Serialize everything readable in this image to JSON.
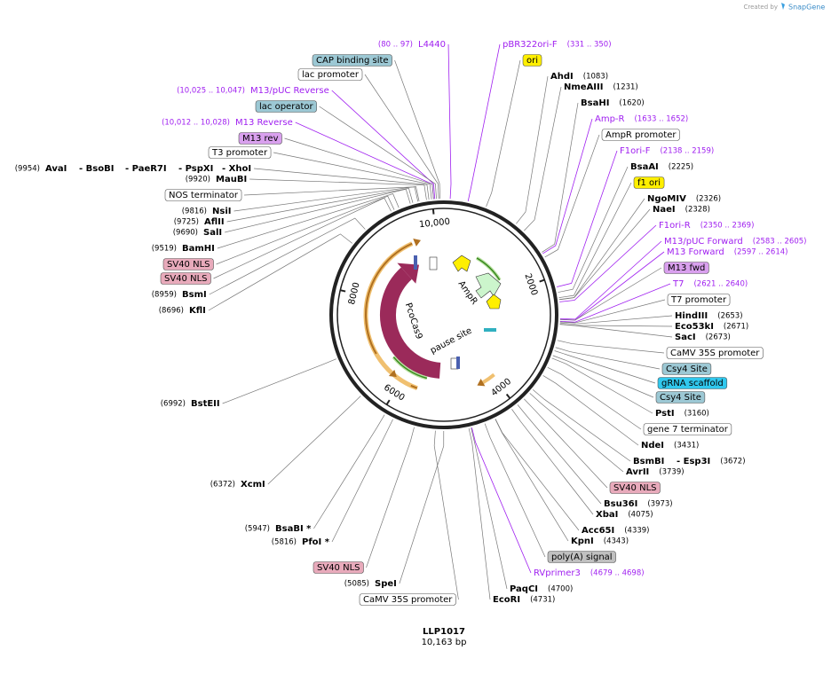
{
  "header": {
    "created_by": "Created by",
    "brand": "SnapGene"
  },
  "map": {
    "name": "LLP1017",
    "length": "10,163 bp",
    "ticks": [
      "10,000",
      "2000",
      "4000",
      "6000",
      "8000"
    ],
    "features": [
      "AmpR",
      "PcoCas9",
      "pause site"
    ]
  },
  "labels": [
    {
      "name": "L4440",
      "pos": "(80 .. 97)"
    },
    {
      "name": "CAP binding site"
    },
    {
      "name": "lac promoter"
    },
    {
      "name": "M13/pUC Reverse",
      "pos": "(10,025 .. 10,047)"
    },
    {
      "name": "lac operator"
    },
    {
      "name": "M13 Reverse",
      "pos": "(10,012 .. 10,028)"
    },
    {
      "name": "M13 rev"
    },
    {
      "name": "T3 promoter"
    },
    {
      "name": "AvaI",
      "pos": "(9954)"
    },
    {
      "name": "- BsoBI"
    },
    {
      "name": "- PaeR7I"
    },
    {
      "name": "- PspXI"
    },
    {
      "name": "- XhoI"
    },
    {
      "name": "MauBI",
      "pos": "(9920)"
    },
    {
      "name": "NOS terminator"
    },
    {
      "name": "NsiI",
      "pos": "(9816)"
    },
    {
      "name": "AflII",
      "pos": "(9725)"
    },
    {
      "name": "SalI",
      "pos": "(9690)"
    },
    {
      "name": "BamHI",
      "pos": "(9519)"
    },
    {
      "name": "SV40 NLS"
    },
    {
      "name": "SV40 NLS"
    },
    {
      "name": "BsmI",
      "pos": "(8959)"
    },
    {
      "name": "KflI",
      "pos": "(8696)"
    },
    {
      "name": "BstEII",
      "pos": "(6992)"
    },
    {
      "name": "XcmI",
      "pos": "(6372)"
    },
    {
      "name": "BsaBI *",
      "pos": "(5947)"
    },
    {
      "name": "PfoI *",
      "pos": "(5816)"
    },
    {
      "name": "SV40 NLS"
    },
    {
      "name": "SpeI",
      "pos": "(5085)"
    },
    {
      "name": "CaMV 35S promoter"
    },
    {
      "name": "pBR322ori-F",
      "pos": "(331 .. 350)"
    },
    {
      "name": "ori"
    },
    {
      "name": "AhdI",
      "pos": "(1083)"
    },
    {
      "name": "NmeAIII",
      "pos": "(1231)"
    },
    {
      "name": "BsaHI",
      "pos": "(1620)"
    },
    {
      "name": "Amp-R",
      "pos": "(1633 .. 1652)"
    },
    {
      "name": "AmpR promoter"
    },
    {
      "name": "F1ori-F",
      "pos": "(2138 .. 2159)"
    },
    {
      "name": "BsaAI",
      "pos": "(2225)"
    },
    {
      "name": "f1 ori"
    },
    {
      "name": "NgoMIV",
      "pos": "(2326)"
    },
    {
      "name": "NaeI",
      "pos": "(2328)"
    },
    {
      "name": "F1ori-R",
      "pos": "(2350 .. 2369)"
    },
    {
      "name": "M13/pUC Forward",
      "pos": "(2583 .. 2605)"
    },
    {
      "name": "M13 Forward",
      "pos": "(2597 .. 2614)"
    },
    {
      "name": "M13 fwd"
    },
    {
      "name": "T7",
      "pos": "(2621 .. 2640)"
    },
    {
      "name": "T7 promoter"
    },
    {
      "name": "HindIII",
      "pos": "(2653)"
    },
    {
      "name": "Eco53kI",
      "pos": "(2671)"
    },
    {
      "name": "SacI",
      "pos": "(2673)"
    },
    {
      "name": "CaMV 35S promoter"
    },
    {
      "name": "Csy4 Site"
    },
    {
      "name": "gRNA scaffold"
    },
    {
      "name": "Csy4 Site"
    },
    {
      "name": "PstI",
      "pos": "(3160)"
    },
    {
      "name": "gene 7 terminator"
    },
    {
      "name": "NdeI",
      "pos": "(3431)"
    },
    {
      "name": "BsmBI"
    },
    {
      "name": "- Esp3I",
      "pos": "(3672)"
    },
    {
      "name": "AvrII",
      "pos": "(3739)"
    },
    {
      "name": "SV40 NLS"
    },
    {
      "name": "Bsu36I",
      "pos": "(3973)"
    },
    {
      "name": "XbaI",
      "pos": "(4075)"
    },
    {
      "name": "Acc65I",
      "pos": "(4339)"
    },
    {
      "name": "KpnI",
      "pos": "(4343)"
    },
    {
      "name": "poly(A) signal"
    },
    {
      "name": "RVprimer3",
      "pos": "(4679 .. 4698)"
    },
    {
      "name": "PaqCI",
      "pos": "(4700)"
    },
    {
      "name": "EcoRI",
      "pos": "(4731)"
    }
  ]
}
